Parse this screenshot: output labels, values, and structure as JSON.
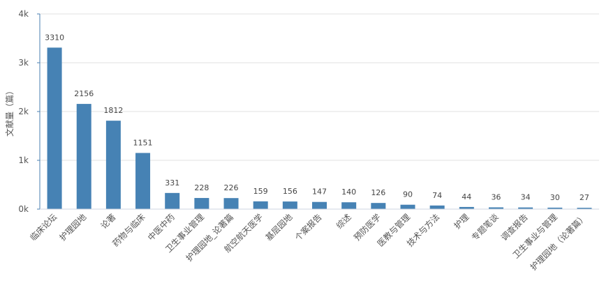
{
  "chart_data": {
    "type": "bar",
    "ylabel": "文献量（篇）",
    "ylim": [
      0,
      4000
    ],
    "yticks": [
      0,
      1000,
      2000,
      3000,
      4000
    ],
    "ytick_labels": [
      "0k",
      "1k",
      "2k",
      "3k",
      "4k"
    ],
    "grid": true,
    "bar_color": "#4682b4",
    "categories": [
      "临床论坛",
      "护理园地",
      "论著",
      "药物与临床",
      "中医中药",
      "卫生事业管理",
      "护理园地_论著篇",
      "航空航天医学",
      "基层园地",
      "个案报告",
      "综述",
      "预防医学",
      "医教与管理",
      "技术与方法",
      "护理",
      "专题笔谈",
      "调查报告",
      "卫生事业与管理",
      "护理园地（论著篇）"
    ],
    "values": [
      3310,
      2156,
      1812,
      1151,
      331,
      228,
      226,
      159,
      156,
      147,
      140,
      126,
      90,
      74,
      44,
      36,
      34,
      30,
      27
    ]
  }
}
